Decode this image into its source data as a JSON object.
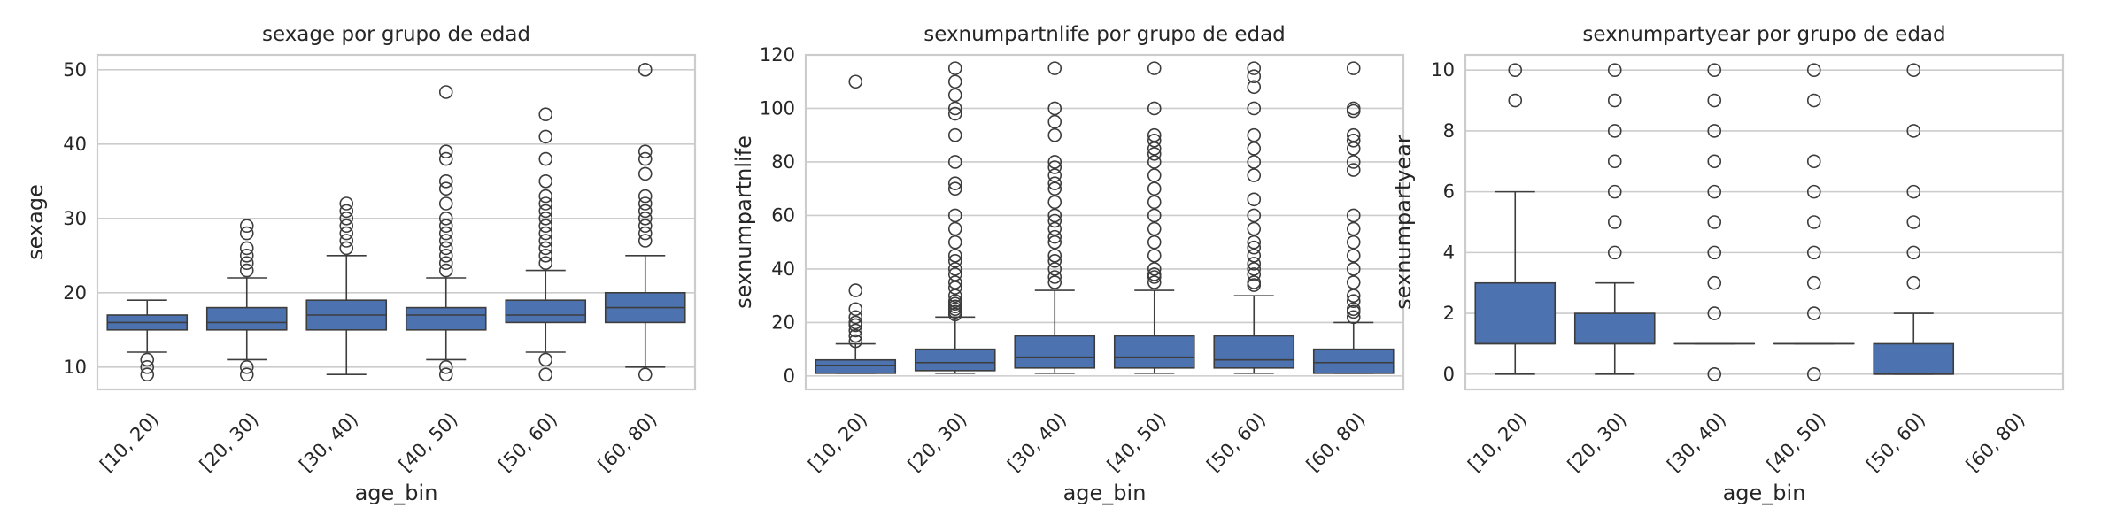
{
  "chart_data": [
    {
      "type": "box",
      "title": "sexage por grupo de edad",
      "xlabel": "age_bin",
      "ylabel": "sexage",
      "categories": [
        "[10, 20)",
        "[20, 30)",
        "[30, 40)",
        "[40, 50)",
        "[50, 60)",
        "[60, 80)"
      ],
      "yticks": [
        10,
        20,
        30,
        40,
        50
      ],
      "ylim": [
        7,
        52
      ],
      "boxes": [
        {
          "whislo": 12,
          "q1": 15,
          "med": 16,
          "q3": 17,
          "whishi": 19,
          "fliers": [
            9,
            10,
            11
          ]
        },
        {
          "whislo": 11,
          "q1": 15,
          "med": 16,
          "q3": 18,
          "whishi": 22,
          "fliers": [
            9,
            10,
            23,
            24,
            25,
            26,
            28,
            29
          ]
        },
        {
          "whislo": 9,
          "q1": 15,
          "med": 17,
          "q3": 19,
          "whishi": 25,
          "fliers": [
            26,
            27,
            28,
            29,
            30,
            31,
            32
          ]
        },
        {
          "whislo": 11,
          "q1": 15,
          "med": 17,
          "q3": 18,
          "whishi": 22,
          "fliers": [
            9,
            10,
            23,
            24,
            25,
            26,
            27,
            28,
            29,
            30,
            32,
            34,
            35,
            38,
            39,
            47
          ]
        },
        {
          "whislo": 12,
          "q1": 16,
          "med": 17,
          "q3": 19,
          "whishi": 23,
          "fliers": [
            9,
            11,
            24,
            25,
            26,
            27,
            28,
            29,
            30,
            31,
            32,
            33,
            35,
            38,
            41,
            44
          ]
        },
        {
          "whislo": 10,
          "q1": 16,
          "med": 18,
          "q3": 20,
          "whishi": 25,
          "fliers": [
            9,
            27,
            28,
            29,
            30,
            31,
            32,
            33,
            36,
            38,
            39,
            50
          ]
        }
      ]
    },
    {
      "type": "box",
      "title": "sexnumpartnlife por grupo de edad",
      "xlabel": "age_bin",
      "ylabel": "sexnumpartnlife",
      "categories": [
        "[10, 20)",
        "[20, 30)",
        "[30, 40)",
        "[40, 50)",
        "[50, 60)",
        "[60, 80)"
      ],
      "yticks": [
        0,
        20,
        40,
        60,
        80,
        100,
        120
      ],
      "ylim": [
        -5,
        120
      ],
      "boxes": [
        {
          "whislo": 1,
          "q1": 1,
          "med": 4,
          "q3": 6,
          "whishi": 12,
          "fliers": [
            13,
            15,
            17,
            19,
            20,
            22,
            25,
            32,
            110
          ]
        },
        {
          "whislo": 1,
          "q1": 2,
          "med": 5,
          "q3": 10,
          "whishi": 22,
          "fliers": [
            23,
            24,
            25,
            26,
            27,
            28,
            30,
            33,
            35,
            38,
            40,
            43,
            45,
            50,
            55,
            60,
            70,
            72,
            80,
            90,
            98,
            100,
            105,
            110,
            115
          ]
        },
        {
          "whislo": 1,
          "q1": 3,
          "med": 7,
          "q3": 15,
          "whishi": 32,
          "fliers": [
            35,
            37,
            40,
            43,
            45,
            50,
            52,
            55,
            58,
            60,
            65,
            70,
            72,
            75,
            78,
            80,
            90,
            95,
            100,
            115
          ]
        },
        {
          "whislo": 1,
          "q1": 3,
          "med": 7,
          "q3": 15,
          "whishi": 32,
          "fliers": [
            35,
            37,
            38,
            40,
            45,
            50,
            55,
            60,
            65,
            70,
            75,
            80,
            83,
            85,
            88,
            90,
            100,
            115
          ]
        },
        {
          "whislo": 1,
          "q1": 3,
          "med": 6,
          "q3": 15,
          "whishi": 30,
          "fliers": [
            34,
            35,
            38,
            40,
            42,
            45,
            48,
            50,
            55,
            60,
            66,
            75,
            80,
            85,
            90,
            100,
            108,
            112,
            115
          ]
        },
        {
          "whislo": 1,
          "q1": 1,
          "med": 5,
          "q3": 10,
          "whishi": 20,
          "fliers": [
            22,
            24,
            25,
            28,
            30,
            35,
            40,
            45,
            50,
            55,
            60,
            77,
            80,
            85,
            88,
            90,
            99,
            100,
            115
          ]
        }
      ]
    },
    {
      "type": "box",
      "title": "sexnumpartyear por grupo de edad",
      "xlabel": "age_bin",
      "ylabel": "sexnumpartyear",
      "categories": [
        "[10, 20)",
        "[20, 30)",
        "[30, 40)",
        "[40, 50)",
        "[50, 60)",
        "[60, 80)"
      ],
      "yticks": [
        0,
        2,
        4,
        6,
        8,
        10
      ],
      "ylim": [
        -0.5,
        10.5
      ],
      "boxes": [
        {
          "whislo": 0,
          "q1": 1,
          "med": 1,
          "q3": 3,
          "whishi": 6,
          "fliers": [
            9,
            10
          ]
        },
        {
          "whislo": 0,
          "q1": 1,
          "med": 1,
          "q3": 2,
          "whishi": 3,
          "fliers": [
            4,
            5,
            6,
            7,
            8,
            9,
            10
          ]
        },
        {
          "whislo": 1,
          "q1": 1,
          "med": 1,
          "q3": 1,
          "whishi": 1,
          "fliers": [
            0,
            2,
            3,
            4,
            5,
            6,
            7,
            8,
            9,
            10
          ]
        },
        {
          "whislo": 1,
          "q1": 1,
          "med": 1,
          "q3": 1,
          "whishi": 1,
          "fliers": [
            0,
            2,
            3,
            4,
            5,
            6,
            7,
            9,
            10
          ]
        },
        {
          "whislo": 0,
          "q1": 0,
          "med": 0,
          "q3": 1,
          "whishi": 2,
          "fliers": [
            3,
            4,
            5,
            6,
            8,
            10
          ]
        },
        null
      ]
    }
  ],
  "colors": {
    "box_fill": "#4c72b0",
    "line": "#3d3d3d",
    "grid": "#cccccc",
    "text": "#262626"
  }
}
